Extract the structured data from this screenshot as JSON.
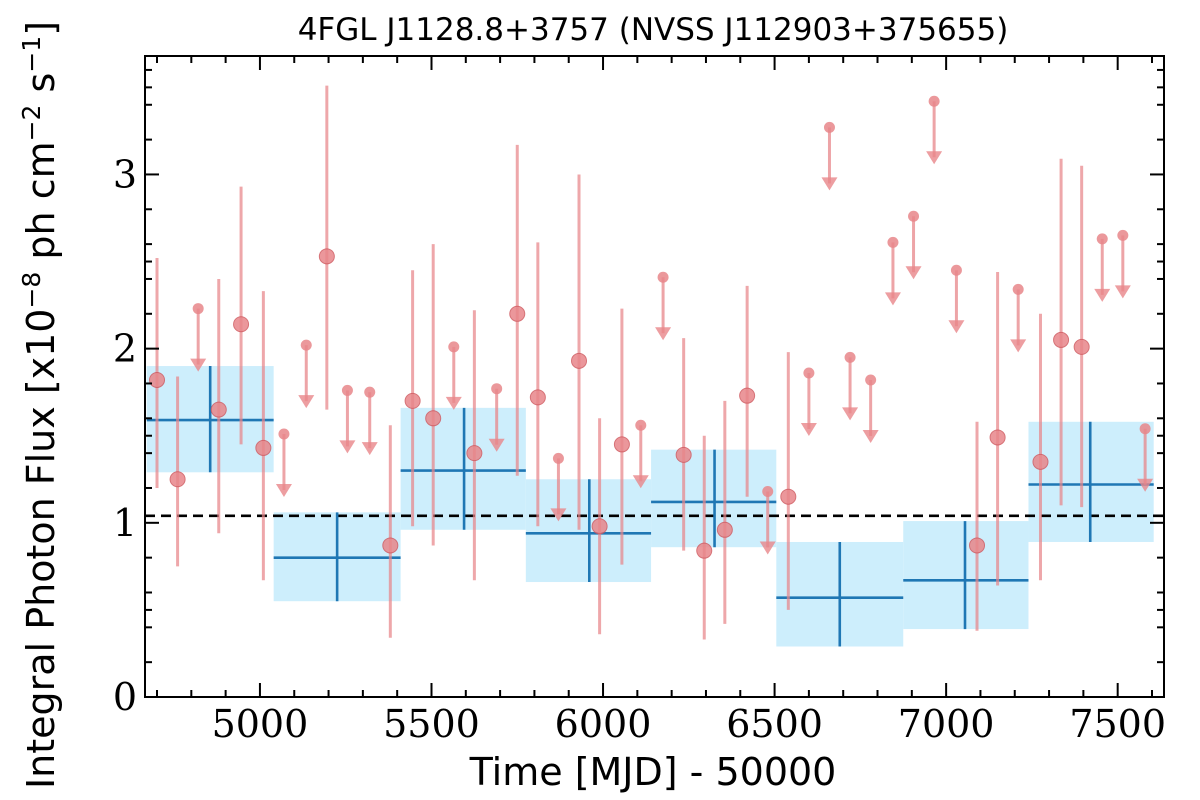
{
  "chart_data": {
    "type": "scatter",
    "title": "4FGL J1128.8+3757 (NVSS J112903+375655)",
    "xlabel": "Time [MJD] - 50000",
    "ylabel": "Integral Photon Flux [x10",
    "ylabel_exp": "−8",
    "ylabel_mid": " ph cm",
    "ylabel_exp2": "−2",
    "ylabel_end": " s",
    "ylabel_exp3": "−1",
    "ylabel_close": "]",
    "xlim": [
      4665,
      7635
    ],
    "ylim": [
      0,
      3.68
    ],
    "xticks": [
      5000,
      5500,
      6000,
      6500,
      7000,
      7500
    ],
    "yticks": [
      0,
      1,
      2,
      3
    ],
    "mean_flux": 1.04,
    "colors": {
      "points": "#e8868a",
      "bins_fill": "#cdeefc",
      "bins_line": "#1f77b4",
      "mean_line": "#000000"
    },
    "points": [
      {
        "x": 4700,
        "y": 1.82,
        "lo": 1.2,
        "hi": 2.52
      },
      {
        "x": 4760,
        "y": 1.25,
        "lo": 0.75,
        "hi": 1.84
      },
      {
        "x": 4880,
        "y": 1.65,
        "lo": 0.94,
        "hi": 2.4
      },
      {
        "x": 4945,
        "y": 2.14,
        "lo": 1.45,
        "hi": 2.93
      },
      {
        "x": 5010,
        "y": 1.43,
        "lo": 0.67,
        "hi": 2.33
      },
      {
        "x": 5195,
        "y": 2.53,
        "lo": 1.65,
        "hi": 3.51
      },
      {
        "x": 5380,
        "y": 0.87,
        "lo": 0.34,
        "hi": 1.56
      },
      {
        "x": 5445,
        "y": 1.7,
        "lo": 0.98,
        "hi": 2.45
      },
      {
        "x": 5505,
        "y": 1.6,
        "lo": 0.87,
        "hi": 2.6
      },
      {
        "x": 5625,
        "y": 1.4,
        "lo": 0.67,
        "hi": 2.22
      },
      {
        "x": 5750,
        "y": 2.2,
        "lo": 1.27,
        "hi": 3.17
      },
      {
        "x": 5810,
        "y": 1.72,
        "lo": 0.98,
        "hi": 2.61
      },
      {
        "x": 5930,
        "y": 1.93,
        "lo": 0.96,
        "hi": 3.0
      },
      {
        "x": 5990,
        "y": 0.98,
        "lo": 0.36,
        "hi": 1.6
      },
      {
        "x": 6055,
        "y": 1.45,
        "lo": 0.76,
        "hi": 2.23
      },
      {
        "x": 6235,
        "y": 1.39,
        "lo": 0.84,
        "hi": 2.06
      },
      {
        "x": 6295,
        "y": 0.84,
        "lo": 0.33,
        "hi": 1.5
      },
      {
        "x": 6355,
        "y": 0.96,
        "lo": 0.42,
        "hi": 1.7
      },
      {
        "x": 6420,
        "y": 1.73,
        "lo": 1.15,
        "hi": 2.36
      },
      {
        "x": 6540,
        "y": 1.15,
        "lo": 0.5,
        "hi": 1.98
      },
      {
        "x": 7090,
        "y": 0.87,
        "lo": 0.38,
        "hi": 1.58
      },
      {
        "x": 7150,
        "y": 1.49,
        "lo": 0.64,
        "hi": 2.44
      },
      {
        "x": 7275,
        "y": 1.35,
        "lo": 0.67,
        "hi": 2.2
      },
      {
        "x": 7335,
        "y": 2.05,
        "lo": 1.1,
        "hi": 3.09
      },
      {
        "x": 7395,
        "y": 2.01,
        "lo": 1.09,
        "hi": 3.05
      }
    ],
    "upper_limits": [
      {
        "x": 4820,
        "y": 2.23
      },
      {
        "x": 5070,
        "y": 1.51
      },
      {
        "x": 5135,
        "y": 2.02
      },
      {
        "x": 5255,
        "y": 1.76
      },
      {
        "x": 5320,
        "y": 1.75
      },
      {
        "x": 5565,
        "y": 2.01
      },
      {
        "x": 5690,
        "y": 1.77
      },
      {
        "x": 5870,
        "y": 1.37
      },
      {
        "x": 6110,
        "y": 1.56
      },
      {
        "x": 6175,
        "y": 2.41
      },
      {
        "x": 6480,
        "y": 1.18
      },
      {
        "x": 6600,
        "y": 1.86
      },
      {
        "x": 6660,
        "y": 3.27
      },
      {
        "x": 6720,
        "y": 1.95
      },
      {
        "x": 6780,
        "y": 1.82
      },
      {
        "x": 6845,
        "y": 2.61
      },
      {
        "x": 6905,
        "y": 2.76
      },
      {
        "x": 6965,
        "y": 3.42
      },
      {
        "x": 7030,
        "y": 2.45
      },
      {
        "x": 7210,
        "y": 2.34
      },
      {
        "x": 7455,
        "y": 2.63
      },
      {
        "x": 7515,
        "y": 2.65
      },
      {
        "x": 7580,
        "y": 1.54
      }
    ],
    "bins": [
      {
        "x0": 4670,
        "x1": 5040,
        "xc": 4855,
        "y": 1.59,
        "lo": 1.29,
        "hi": 1.9
      },
      {
        "x0": 5040,
        "x1": 5410,
        "xc": 5225,
        "y": 0.8,
        "lo": 0.55,
        "hi": 1.06
      },
      {
        "x0": 5410,
        "x1": 5775,
        "xc": 5595,
        "y": 1.3,
        "lo": 0.96,
        "hi": 1.66
      },
      {
        "x0": 5775,
        "x1": 6140,
        "xc": 5960,
        "y": 0.94,
        "lo": 0.66,
        "hi": 1.25
      },
      {
        "x0": 6140,
        "x1": 6505,
        "xc": 6325,
        "y": 1.12,
        "lo": 0.86,
        "hi": 1.42
      },
      {
        "x0": 6505,
        "x1": 6875,
        "xc": 6690,
        "y": 0.57,
        "lo": 0.29,
        "hi": 0.89
      },
      {
        "x0": 6875,
        "x1": 7240,
        "xc": 7055,
        "y": 0.67,
        "lo": 0.39,
        "hi": 1.01
      },
      {
        "x0": 7240,
        "x1": 7605,
        "xc": 7420,
        "y": 1.22,
        "lo": 0.89,
        "hi": 1.58
      }
    ]
  }
}
